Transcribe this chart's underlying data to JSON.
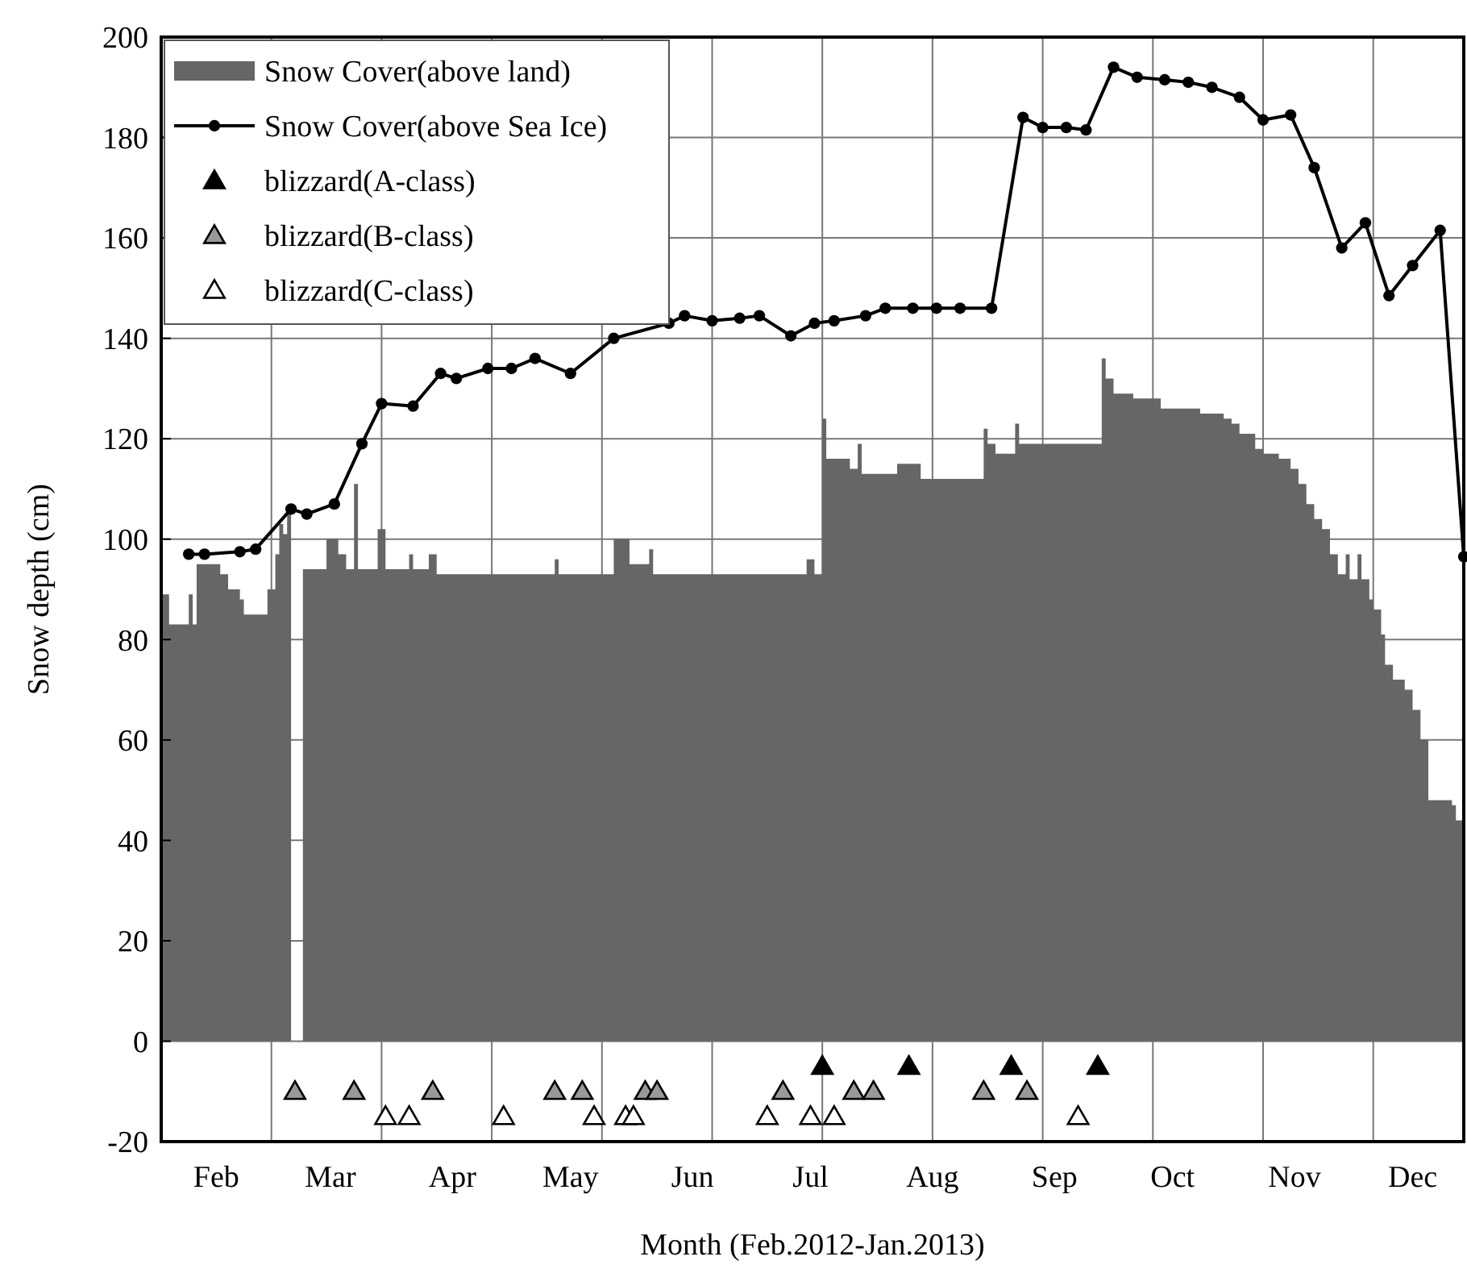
{
  "chart_data": {
    "type": "area",
    "xlabel": "Month (Feb.2012-Jan.2013)",
    "ylabel": "Snow depth (cm)",
    "xlim": [
      "2012-02-01",
      "2012-12-28"
    ],
    "xticks": [
      {
        "value": "2012-02-15",
        "label": "Feb"
      },
      {
        "value": "2012-03-15",
        "label": "Mar"
      },
      {
        "value": "2012-04-15",
        "label": "Apr"
      },
      {
        "value": "2012-05-15",
        "label": "May"
      },
      {
        "value": "2012-06-15",
        "label": "Jun"
      },
      {
        "value": "2012-07-15",
        "label": "Jul"
      },
      {
        "value": "2012-08-15",
        "label": "Aug"
      },
      {
        "value": "2012-09-15",
        "label": "Sep"
      },
      {
        "value": "2012-10-15",
        "label": "Oct"
      },
      {
        "value": "2012-11-15",
        "label": "Nov"
      },
      {
        "value": "2012-12-15",
        "label": "Dec"
      },
      {
        "value": "2012-02-29",
        "label": null
      },
      {
        "value": "2012-03-28",
        "label": null
      },
      {
        "value": "2012-04-25",
        "label": null
      },
      {
        "value": "2012-05-23",
        "label": null
      },
      {
        "value": "2012-06-20",
        "label": null
      },
      {
        "value": "2012-07-18",
        "label": null
      },
      {
        "value": "2012-08-15",
        "label": null
      },
      {
        "value": "2012-09-12",
        "label": null
      },
      {
        "value": "2012-10-10",
        "label": null
      },
      {
        "value": "2012-11-07",
        "label": null
      },
      {
        "value": "2012-12-05",
        "label": null
      }
    ],
    "ylim": [
      -20,
      200
    ],
    "yticks": [
      -20,
      0,
      20,
      40,
      60,
      80,
      100,
      120,
      140,
      160,
      180,
      200
    ],
    "grid": true,
    "legend": "top left",
    "series": [
      {
        "name": "Snow Cover(above land)",
        "color": "#666666",
        "x": [
          "2012-02-01",
          "2012-02-03",
          "2012-02-08",
          "2012-02-09",
          "2012-02-10",
          "2012-02-16",
          "2012-02-18",
          "2012-02-21",
          "2012-02-22",
          "2012-02-28",
          "2012-03-01",
          "2012-03-02",
          "2012-03-03",
          "2012-03-04",
          "2012-03-05",
          "2012-03-07",
          "2012-03-08",
          "2012-03-14",
          "2012-03-17",
          "2012-03-19",
          "2012-03-21",
          "2012-03-22",
          "2012-03-27",
          "2012-03-29",
          "2012-04-04",
          "2012-04-05",
          "2012-04-09",
          "2012-04-11",
          "2012-05-11",
          "2012-05-12",
          "2012-05-26",
          "2012-05-30",
          "2012-06-04",
          "2012-06-05",
          "2012-07-14",
          "2012-07-16",
          "2012-07-18",
          "2012-07-19",
          "2012-07-25",
          "2012-07-27",
          "2012-07-28",
          "2012-08-06",
          "2012-08-12",
          "2012-08-28",
          "2012-08-29",
          "2012-08-31",
          "2012-09-05",
          "2012-09-06",
          "2012-09-27",
          "2012-09-28",
          "2012-09-30",
          "2012-10-05",
          "2012-10-12",
          "2012-10-22",
          "2012-10-28",
          "2012-10-30",
          "2012-11-01",
          "2012-11-05",
          "2012-11-07",
          "2012-11-11",
          "2012-11-14",
          "2012-11-16",
          "2012-11-18",
          "2012-11-20",
          "2012-11-22",
          "2012-11-24",
          "2012-11-26",
          "2012-11-28",
          "2012-11-29",
          "2012-12-01",
          "2012-12-02",
          "2012-12-04",
          "2012-12-05",
          "2012-12-07",
          "2012-12-08",
          "2012-12-10",
          "2012-12-13",
          "2012-12-15",
          "2012-12-17",
          "2012-12-19",
          "2012-12-25",
          "2012-12-26",
          "2012-12-28"
        ],
        "values": [
          89,
          83,
          89,
          83,
          95,
          93,
          90,
          88,
          85,
          90,
          97,
          103,
          101,
          105,
          103,
          null,
          94,
          100,
          97,
          94,
          111,
          94,
          102,
          94,
          97,
          94,
          97,
          93,
          96,
          93,
          100,
          95,
          98,
          93,
          96,
          93,
          124,
          116,
          114,
          119,
          113,
          115,
          112,
          122,
          119,
          117,
          123,
          119,
          136,
          132,
          129,
          128,
          126,
          125,
          124,
          123,
          121,
          118,
          117,
          116,
          114,
          111,
          107,
          104,
          102,
          97,
          93,
          97,
          92,
          97,
          92,
          88,
          86,
          81,
          75,
          72,
          70,
          66,
          60,
          48,
          47,
          44,
          43
        ]
      },
      {
        "name": "Snow Cover(above Sea Ice)",
        "type": "line",
        "color": "#000000",
        "marker": "circle",
        "x": [
          "2012-02-08",
          "2012-02-12",
          "2012-02-21",
          "2012-02-25",
          "2012-03-05",
          "2012-03-09",
          "2012-03-16",
          "2012-03-23",
          "2012-03-28",
          "2012-04-05",
          "2012-04-12",
          "2012-04-16",
          "2012-04-24",
          "2012-04-30",
          "2012-05-06",
          "2012-05-15",
          "2012-05-26",
          "2012-06-09",
          "2012-06-13",
          "2012-06-20",
          "2012-06-27",
          "2012-07-02",
          "2012-07-10",
          "2012-07-16",
          "2012-07-21",
          "2012-07-29",
          "2012-08-03",
          "2012-08-10",
          "2012-08-16",
          "2012-08-22",
          "2012-08-30",
          "2012-09-07",
          "2012-09-12",
          "2012-09-18",
          "2012-09-23",
          "2012-09-30",
          "2012-10-06",
          "2012-10-13",
          "2012-10-19",
          "2012-10-25",
          "2012-11-01",
          "2012-11-07",
          "2012-11-14",
          "2012-11-20",
          "2012-11-27",
          "2012-12-03",
          "2012-12-09",
          "2012-12-15",
          "2012-12-22",
          "2012-12-28"
        ],
        "values": [
          97,
          97,
          97.5,
          98,
          106,
          105,
          107,
          119,
          127,
          126.5,
          133,
          132,
          134,
          134,
          136,
          133,
          140,
          143,
          144.5,
          143.5,
          144,
          144.5,
          140.5,
          143,
          143.5,
          144.5,
          146,
          146,
          146,
          146,
          146,
          184,
          182,
          182,
          181.5,
          194,
          192,
          191.5,
          191,
          190,
          188,
          183.5,
          184.5,
          174,
          158,
          163,
          148.5,
          154.5,
          161.5,
          96.5
        ]
      },
      {
        "name": "blizzard(A-class)",
        "type": "scatter",
        "color": "#000000",
        "marker": "triangle",
        "x": [
          "2012-07-18",
          "2012-08-09",
          "2012-09-04",
          "2012-09-26"
        ],
        "values": [
          -5,
          -5,
          -5,
          -5
        ]
      },
      {
        "name": "blizzard(B-class)",
        "type": "scatter",
        "color": "#999999",
        "marker": "triangle",
        "x": [
          "2012-03-06",
          "2012-03-21",
          "2012-04-10",
          "2012-05-11",
          "2012-05-18",
          "2012-06-03",
          "2012-06-06",
          "2012-07-08",
          "2012-07-26",
          "2012-07-31",
          "2012-08-28",
          "2012-09-08"
        ],
        "values": [
          -10,
          -10,
          -10,
          -10,
          -10,
          -10,
          -10,
          -10,
          -10,
          -10,
          -10,
          -10
        ]
      },
      {
        "name": "blizzard(C-class)",
        "type": "scatter",
        "color": "#ffffff",
        "marker": "triangle",
        "x": [
          "2012-03-29",
          "2012-04-04",
          "2012-04-28",
          "2012-05-21",
          "2012-05-29",
          "2012-05-31",
          "2012-07-04",
          "2012-07-15",
          "2012-07-21",
          "2012-09-21"
        ],
        "values": [
          -15,
          -15,
          -15,
          -15,
          -15,
          -15,
          -15,
          -15,
          -15,
          -15
        ]
      }
    ]
  }
}
